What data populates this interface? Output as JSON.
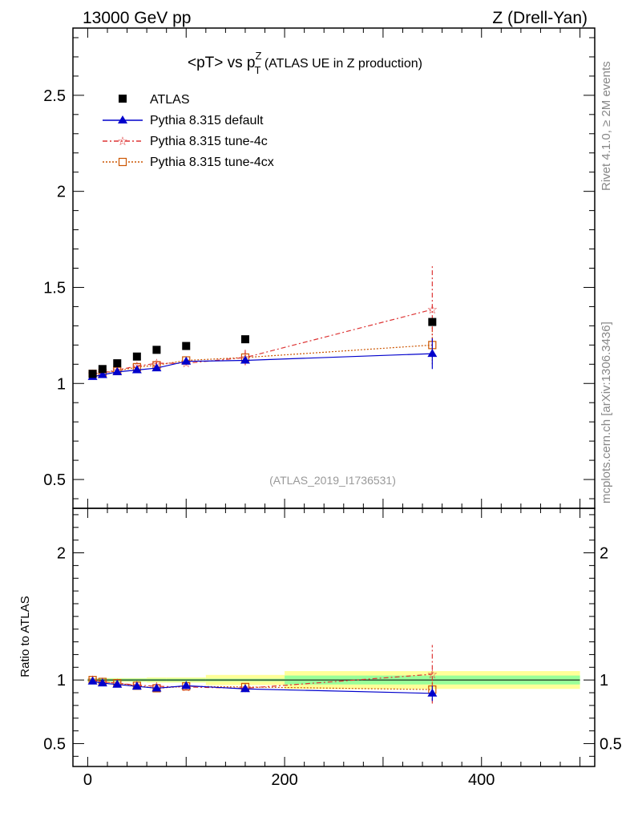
{
  "header": {
    "left": "13000 GeV pp",
    "right": "Z (Drell-Yan)"
  },
  "plot_title": {
    "main": "<pT> vs p",
    "sup": "Z",
    "sub": "T",
    "rest": " (ATLAS UE in Z production)"
  },
  "side_labels": {
    "rivet": "Rivet 4.1.0, ≥ 2M events",
    "mcplots": "mcplots.cern.ch [arXiv:1306.3436]"
  },
  "watermark": "(ATLAS_2019_I1736531)",
  "colors": {
    "data": "#000000",
    "default": "#0000cc",
    "tune4c": "#dd3333",
    "tune4cx": "#cc5500",
    "band_inner": "#99ff99",
    "band_outer": "#ffff99"
  },
  "chart_data": [
    {
      "type": "scatter",
      "panel": "main",
      "title": "<pT> vs pT^Z (ATLAS UE in Z production)",
      "xlim": [
        -15,
        515
      ],
      "ylim": [
        0.35,
        2.85
      ],
      "ytick_labels": [
        {
          "v": 0.5,
          "t": "0.5"
        },
        {
          "v": 1,
          "t": "1"
        },
        {
          "v": 1.5,
          "t": "1.5"
        },
        {
          "v": 2,
          "t": "2"
        },
        {
          "v": 2.5,
          "t": "2.5"
        }
      ],
      "legend": [
        "ATLAS",
        "Pythia 8.315 default",
        "Pythia 8.315 tune-4c",
        "Pythia 8.315 tune-4cx"
      ],
      "series": [
        {
          "key": "data",
          "name": "ATLAS",
          "x": [
            5,
            15,
            30,
            50,
            70,
            100,
            160,
            350
          ],
          "y": [
            1.05,
            1.075,
            1.105,
            1.14,
            1.175,
            1.195,
            1.23,
            1.32
          ]
        },
        {
          "key": "default",
          "name": "Pythia 8.315 default",
          "x": [
            5,
            15,
            30,
            50,
            70,
            100,
            160,
            350
          ],
          "y": [
            1.035,
            1.045,
            1.06,
            1.07,
            1.08,
            1.115,
            1.12,
            1.155
          ],
          "err": [
            0.005,
            0.005,
            0.005,
            0.006,
            0.006,
            0.01,
            0.015,
            0.08
          ]
        },
        {
          "key": "tune4c",
          "name": "Pythia 8.315 tune-4c",
          "x": [
            5,
            15,
            30,
            50,
            70,
            100,
            160,
            350
          ],
          "y": [
            1.05,
            1.055,
            1.07,
            1.09,
            1.105,
            1.105,
            1.135,
            1.385
          ],
          "err": [
            0.005,
            0.005,
            0.006,
            0.006,
            0.007,
            0.01,
            0.04,
            0.23
          ]
        },
        {
          "key": "tune4cx",
          "name": "Pythia 8.315 tune-4cx",
          "x": [
            5,
            15,
            30,
            50,
            70,
            100,
            160,
            350
          ],
          "y": [
            1.05,
            1.055,
            1.065,
            1.085,
            1.095,
            1.12,
            1.135,
            1.2
          ],
          "err": [
            0.005,
            0.005,
            0.006,
            0.006,
            0.007,
            0.01,
            0.03,
            0.1
          ]
        }
      ]
    },
    {
      "type": "scatter",
      "panel": "ratio",
      "ylabel": "Ratio to ATLAS",
      "xlim": [
        -15,
        515
      ],
      "ylim": [
        0.32,
        2.35
      ],
      "xtick_labels": [
        {
          "v": 0,
          "t": "0"
        },
        {
          "v": 200,
          "t": "200"
        },
        {
          "v": 400,
          "t": "400"
        }
      ],
      "ytick_labels": [
        {
          "v": 0.5,
          "t": "0.5"
        },
        {
          "v": 1,
          "t": "1"
        },
        {
          "v": 2,
          "t": "2"
        }
      ],
      "bands": [
        {
          "x0": 0,
          "x1": 10,
          "inner": 0.01,
          "outer": 0.015
        },
        {
          "x0": 10,
          "x1": 20,
          "inner": 0.01,
          "outer": 0.015
        },
        {
          "x0": 20,
          "x1": 40,
          "inner": 0.01,
          "outer": 0.015
        },
        {
          "x0": 40,
          "x1": 60,
          "inner": 0.01,
          "outer": 0.015
        },
        {
          "x0": 60,
          "x1": 80,
          "inner": 0.01,
          "outer": 0.02
        },
        {
          "x0": 80,
          "x1": 120,
          "inner": 0.01,
          "outer": 0.02
        },
        {
          "x0": 120,
          "x1": 200,
          "inner": 0.01,
          "outer": 0.04
        },
        {
          "x0": 200,
          "x1": 500,
          "inner": 0.035,
          "outer": 0.07
        }
      ],
      "series": [
        {
          "key": "default",
          "name": "Pythia 8.315 default",
          "x": [
            5,
            15,
            30,
            50,
            70,
            100,
            160,
            350
          ],
          "y": [
            0.99,
            0.975,
            0.965,
            0.95,
            0.935,
            0.955,
            0.93,
            0.895
          ],
          "err": [
            0.005,
            0.005,
            0.005,
            0.006,
            0.006,
            0.01,
            0.015,
            0.06
          ]
        },
        {
          "key": "tune4c",
          "name": "Pythia 8.315 tune-4c",
          "x": [
            5,
            15,
            30,
            50,
            70,
            100,
            160,
            350
          ],
          "y": [
            1.0,
            0.985,
            0.975,
            0.96,
            0.95,
            0.945,
            0.935,
            1.045
          ],
          "err": [
            0.005,
            0.005,
            0.006,
            0.006,
            0.007,
            0.01,
            0.03,
            0.23
          ]
        },
        {
          "key": "tune4cx",
          "name": "Pythia 8.315 tune-4cx",
          "x": [
            5,
            15,
            30,
            50,
            70,
            100,
            160,
            350
          ],
          "y": [
            1.0,
            0.985,
            0.975,
            0.955,
            0.935,
            0.95,
            0.945,
            0.925
          ],
          "err": [
            0.005,
            0.005,
            0.006,
            0.006,
            0.007,
            0.01,
            0.03,
            0.08
          ]
        }
      ]
    }
  ]
}
